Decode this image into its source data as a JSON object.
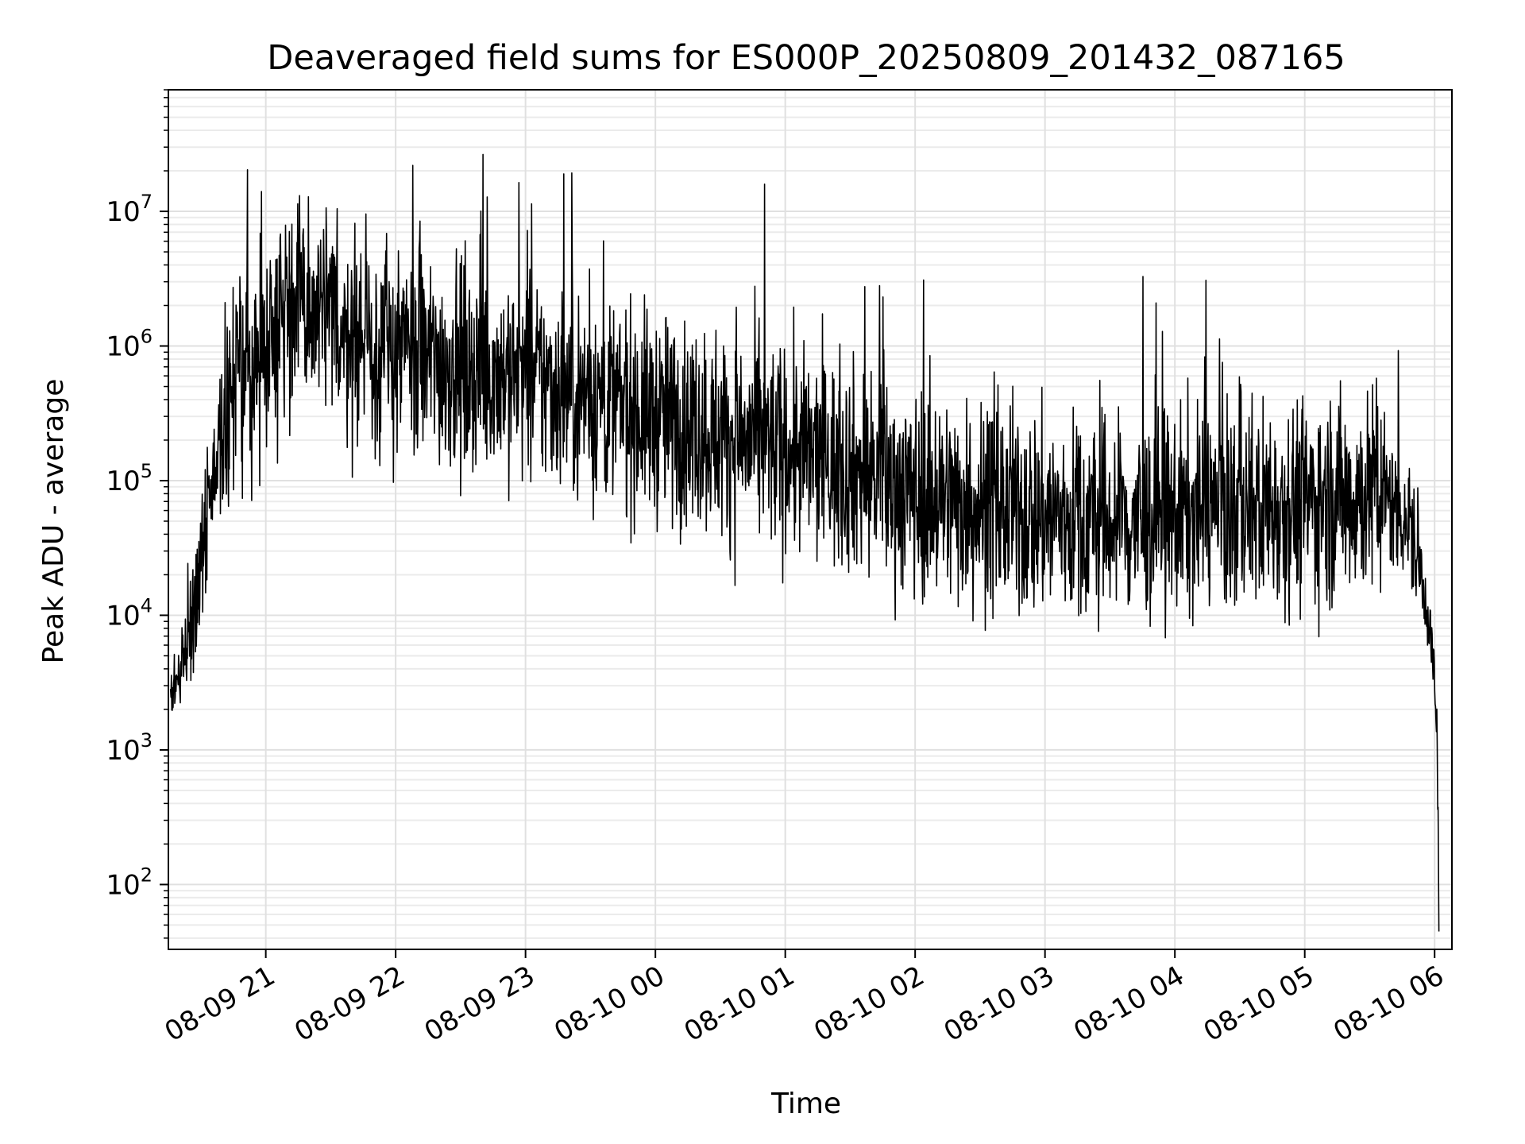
{
  "chart_data": {
    "type": "line",
    "title": "Deaveraged field sums for ES000P_20250809_201432_087165",
    "xlabel": "Time",
    "ylabel": "Peak ADU - average",
    "yscale": "log",
    "ylim": [
      33,
      80000000
    ],
    "xlim": [
      "2025-08-09 20:15",
      "2025-08-10 06:08"
    ],
    "grid": true,
    "line_color": "#000000",
    "x_ticks": [
      {
        "label": "08-09 21",
        "time": "2025-08-09 21:00"
      },
      {
        "label": "08-09 22",
        "time": "2025-08-09 22:00"
      },
      {
        "label": "08-09 23",
        "time": "2025-08-09 23:00"
      },
      {
        "label": "08-10 00",
        "time": "2025-08-10 00:00"
      },
      {
        "label": "08-10 01",
        "time": "2025-08-10 01:00"
      },
      {
        "label": "08-10 02",
        "time": "2025-08-10 02:00"
      },
      {
        "label": "08-10 03",
        "time": "2025-08-10 03:00"
      },
      {
        "label": "08-10 04",
        "time": "2025-08-10 04:00"
      },
      {
        "label": "08-10 05",
        "time": "2025-08-10 05:00"
      },
      {
        "label": "08-10 06",
        "time": "2025-08-10 06:00"
      }
    ],
    "y_ticks": [
      {
        "base": "10",
        "exp": "2",
        "value": 100
      },
      {
        "base": "10",
        "exp": "3",
        "value": 1000
      },
      {
        "base": "10",
        "exp": "4",
        "value": 10000
      },
      {
        "base": "10",
        "exp": "5",
        "value": 100000
      },
      {
        "base": "10",
        "exp": "6",
        "value": 1000000
      },
      {
        "base": "10",
        "exp": "7",
        "value": 10000000
      }
    ],
    "series": [
      {
        "x": [
          "2025-08-09 20:16",
          "2025-08-09 20:20",
          "2025-08-09 20:25",
          "2025-08-09 20:30",
          "2025-08-09 20:33",
          "2025-08-09 20:36",
          "2025-08-09 20:40",
          "2025-08-09 20:45",
          "2025-08-09 20:50",
          "2025-08-09 20:55",
          "2025-08-09 21:00",
          "2025-08-09 21:05",
          "2025-08-09 21:10",
          "2025-08-09 21:15",
          "2025-08-09 21:20",
          "2025-08-09 21:30",
          "2025-08-09 21:40",
          "2025-08-09 21:50",
          "2025-08-09 22:00",
          "2025-08-09 22:15",
          "2025-08-09 22:30",
          "2025-08-09 22:45",
          "2025-08-09 23:00",
          "2025-08-09 23:15",
          "2025-08-09 23:30",
          "2025-08-09 23:45",
          "2025-08-10 00:00",
          "2025-08-10 00:20",
          "2025-08-10 00:40",
          "2025-08-10 01:00",
          "2025-08-10 01:20",
          "2025-08-10 01:40",
          "2025-08-10 02:00",
          "2025-08-10 02:20",
          "2025-08-10 02:40",
          "2025-08-10 03:00",
          "2025-08-10 03:20",
          "2025-08-10 03:40",
          "2025-08-10 04:00",
          "2025-08-10 04:20",
          "2025-08-10 04:40",
          "2025-08-10 05:00",
          "2025-08-10 05:15",
          "2025-08-10 05:30",
          "2025-08-10 05:40",
          "2025-08-10 05:45",
          "2025-08-10 05:50",
          "2025-08-10 05:55",
          "2025-08-10 05:58",
          "2025-08-10 06:00",
          "2025-08-10 06:01",
          "2025-08-10 06:02"
        ],
        "y": [
          2000,
          4000,
          8000,
          25000,
          60000,
          120000,
          250000,
          500000,
          600000,
          700000,
          1200000,
          1800000,
          2000000,
          2000000,
          1800000,
          1500000,
          1200000,
          1000000,
          900000,
          800000,
          700000,
          650000,
          600000,
          500000,
          420000,
          350000,
          300000,
          250000,
          200000,
          170000,
          140000,
          110000,
          80000,
          70000,
          60000,
          55000,
          50000,
          48000,
          55000,
          60000,
          65000,
          70000,
          75000,
          80000,
          70000,
          60000,
          40000,
          15000,
          8000,
          3000,
          1500,
          60
        ]
      }
    ],
    "annotations": []
  }
}
